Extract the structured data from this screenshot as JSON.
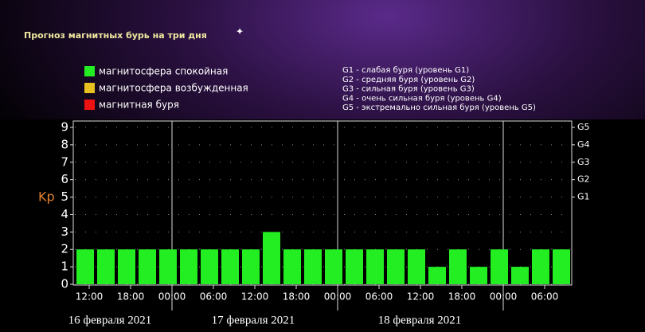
{
  "chart_data": {
    "type": "bar",
    "title": "Прогноз магнитных бурь на три дня",
    "legend": [
      {
        "name": "магнитосфера спокойная",
        "color": "#22ee22"
      },
      {
        "name": "магнитосфера возбужденная",
        "color": "#e8c020"
      },
      {
        "name": "магнитная буря",
        "color": "#ee1111"
      }
    ],
    "storm_levels": [
      "G1 - слабая буря (уровень G1)",
      "G2 - средняя буря (уровень G2)",
      "G3 - сильная буря (уровень G3)",
      "G4 - очень сильная буря (уровень G4)",
      "G5 - экстремально сильная буря (уровень G5)"
    ],
    "ylabel": "Kp",
    "categories": [
      "12:00",
      null,
      "18:00",
      null,
      "00:00",
      null,
      "06:00",
      null,
      "12:00",
      null,
      "18:00",
      null,
      "00:00",
      null,
      "06:00",
      null,
      "12:00",
      null,
      "18:00",
      null,
      "00:00",
      null,
      "06:00",
      null
    ],
    "values": [
      2,
      2,
      2,
      2,
      2,
      2,
      2,
      2,
      2,
      3,
      2,
      2,
      2,
      2,
      2,
      2,
      2,
      1,
      2,
      1,
      2,
      1,
      2,
      2
    ],
    "color": "#22ee22",
    "dates": [
      "16 февраля 2021",
      "17 февраля 2021",
      "18 февраля 2021"
    ],
    "ylim": [
      0,
      9
    ],
    "yticks": [
      0,
      1,
      2,
      3,
      4,
      5,
      6,
      7,
      8,
      9
    ],
    "y2lim": [
      0,
      9
    ],
    "y2ticks": [
      {
        "value": 5,
        "label": "G1"
      },
      {
        "value": 6,
        "label": "G2"
      },
      {
        "value": 7,
        "label": "G3"
      },
      {
        "value": 8,
        "label": "G4"
      },
      {
        "value": 9,
        "label": "G5"
      }
    ],
    "grid": true
  }
}
